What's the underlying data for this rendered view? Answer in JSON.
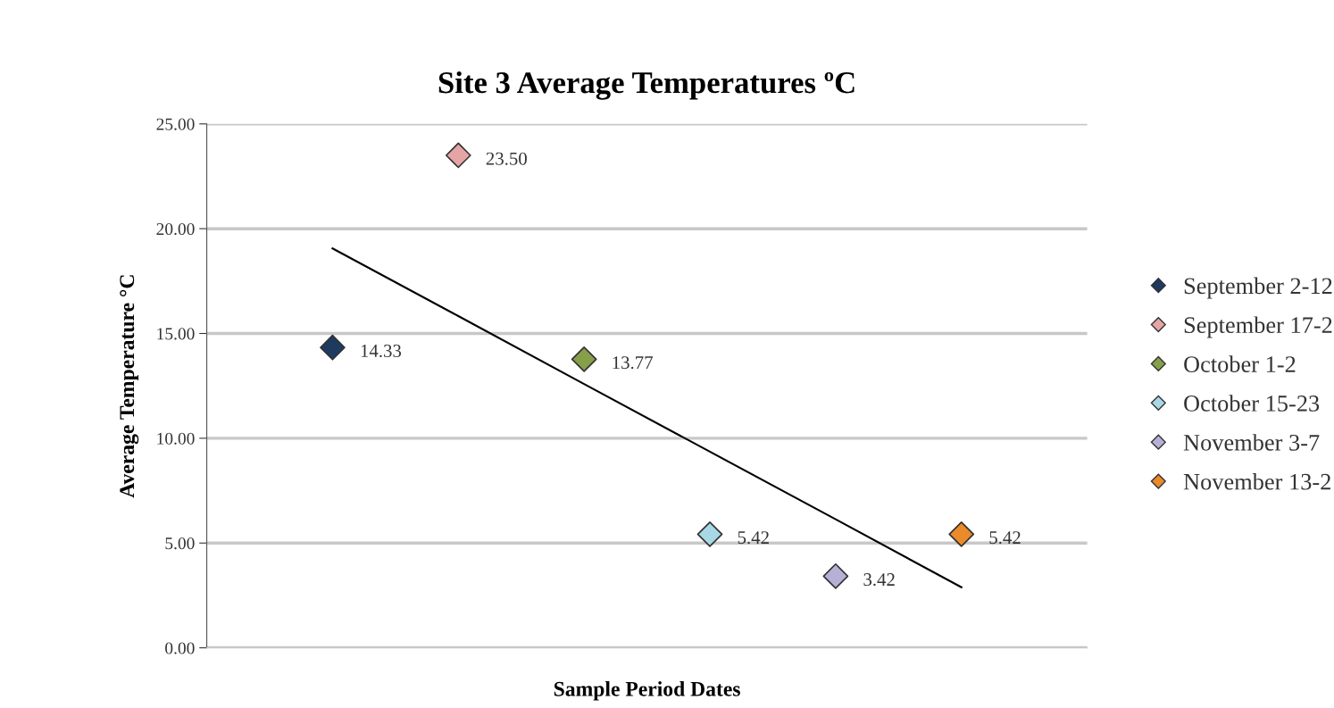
{
  "chart_data": {
    "type": "scatter",
    "title": "Site 3 Average Temperatures ºC",
    "xlabel": "Sample Period Dates",
    "ylabel": "Average Temperature °C",
    "categories": [
      null,
      null,
      null,
      null,
      null,
      null
    ],
    "ylim": [
      0,
      25
    ],
    "yticks": [
      {
        "value": 0,
        "label": "0.00"
      },
      {
        "value": 5,
        "label": "5.00"
      },
      {
        "value": 10,
        "label": "10.00"
      },
      {
        "value": 15,
        "label": "15.00"
      },
      {
        "value": 20,
        "label": "20.00"
      },
      {
        "value": 25,
        "label": "25.00"
      }
    ],
    "grid": "y",
    "legend": "right",
    "marker": "diamond",
    "series": [
      {
        "name": "September 2-12",
        "color": "#1f3a5f",
        "values": [
          14.33,
          null,
          null,
          null,
          null,
          null
        ],
        "value_labels": [
          "14.33",
          null,
          null,
          null,
          null,
          null
        ]
      },
      {
        "name": "September 17-2",
        "color": "#e6a5a5",
        "values": [
          null,
          23.5,
          null,
          null,
          null,
          null
        ],
        "value_labels": [
          null,
          "23.50",
          null,
          null,
          null,
          null
        ]
      },
      {
        "name": "October 1-2",
        "color": "#86a04a",
        "values": [
          null,
          null,
          13.77,
          null,
          null,
          null
        ],
        "value_labels": [
          null,
          null,
          "13.77",
          null,
          null,
          null
        ]
      },
      {
        "name": "October 15-23",
        "color": "#a8d8e6",
        "values": [
          null,
          null,
          null,
          5.42,
          null,
          null
        ],
        "value_labels": [
          null,
          null,
          null,
          "5.42",
          null,
          null
        ]
      },
      {
        "name": "November 3-7",
        "color": "#b7b0d6",
        "values": [
          null,
          null,
          null,
          null,
          3.42,
          null
        ],
        "value_labels": [
          null,
          null,
          null,
          null,
          "3.42",
          null
        ]
      },
      {
        "name": "November 13-2",
        "color": "#ea8a2a",
        "values": [
          null,
          null,
          null,
          null,
          null,
          5.42
        ],
        "value_labels": [
          null,
          null,
          null,
          null,
          null,
          "5.42"
        ]
      },
      {
        "type": "line",
        "marker": "none",
        "color": "#000000",
        "values": [
          19.06,
          15.83,
          12.59,
          9.36,
          6.13,
          2.89
        ]
      }
    ]
  }
}
